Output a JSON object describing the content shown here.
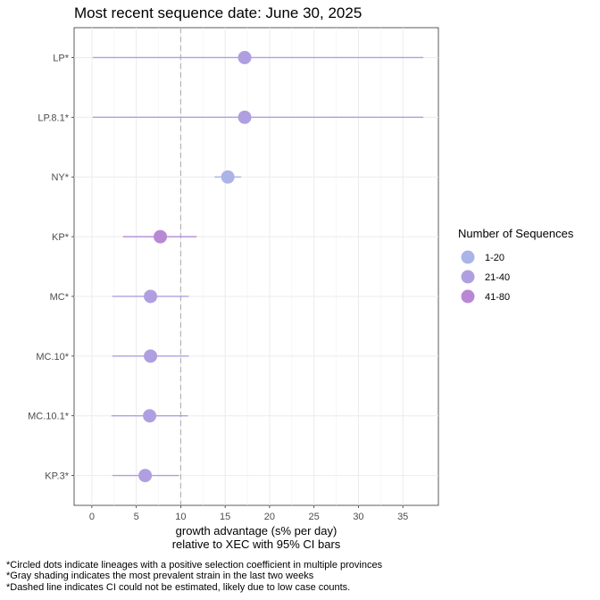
{
  "chart_data": {
    "type": "scatter",
    "title": "Most recent sequence date: June 30, 2025",
    "xlabel_line1": "growth advantage (s% per day)",
    "xlabel_line2": "relative to  XEC  with 95% CI bars",
    "xlim": [
      -2,
      39
    ],
    "xticks": [
      0,
      5,
      10,
      15,
      20,
      25,
      30,
      35
    ],
    "reference_line_x": 10,
    "grid": true,
    "legend": {
      "title": "Number of Sequences",
      "placement": "right",
      "items": [
        {
          "label": "1-20",
          "color": "#aab4e6"
        },
        {
          "label": "21-40",
          "color": "#b09fe0"
        },
        {
          "label": "41-80",
          "color": "#b888d4"
        }
      ]
    },
    "lineages": [
      {
        "label": "LP*",
        "value": 17.2,
        "ci_low": 0.1,
        "ci_high": 37.3,
        "group": "21-40"
      },
      {
        "label": "LP.8.1*",
        "value": 17.2,
        "ci_low": 0.1,
        "ci_high": 37.3,
        "group": "21-40"
      },
      {
        "label": "NY*",
        "value": 15.3,
        "ci_low": 13.8,
        "ci_high": 16.8,
        "group": "1-20"
      },
      {
        "label": "KP*",
        "value": 7.7,
        "ci_low": 3.5,
        "ci_high": 11.8,
        "group": "41-80"
      },
      {
        "label": "MC*",
        "value": 6.6,
        "ci_low": 2.3,
        "ci_high": 10.9,
        "group": "21-40"
      },
      {
        "label": "MC.10*",
        "value": 6.6,
        "ci_low": 2.3,
        "ci_high": 10.9,
        "group": "21-40"
      },
      {
        "label": "MC.10.1*",
        "value": 6.5,
        "ci_low": 2.2,
        "ci_high": 10.8,
        "group": "21-40"
      },
      {
        "label": "KP.3*",
        "value": 6.0,
        "ci_low": 2.3,
        "ci_high": 9.8,
        "group": "21-40"
      }
    ]
  },
  "footnotes": [
    "*Circled dots indicate lineages with a positive selection coefficient in multiple provinces",
    "*Gray shading indicates the most prevalent strain in the last two weeks",
    "*Dashed line indicates CI could not be estimated, likely due to low case counts."
  ]
}
